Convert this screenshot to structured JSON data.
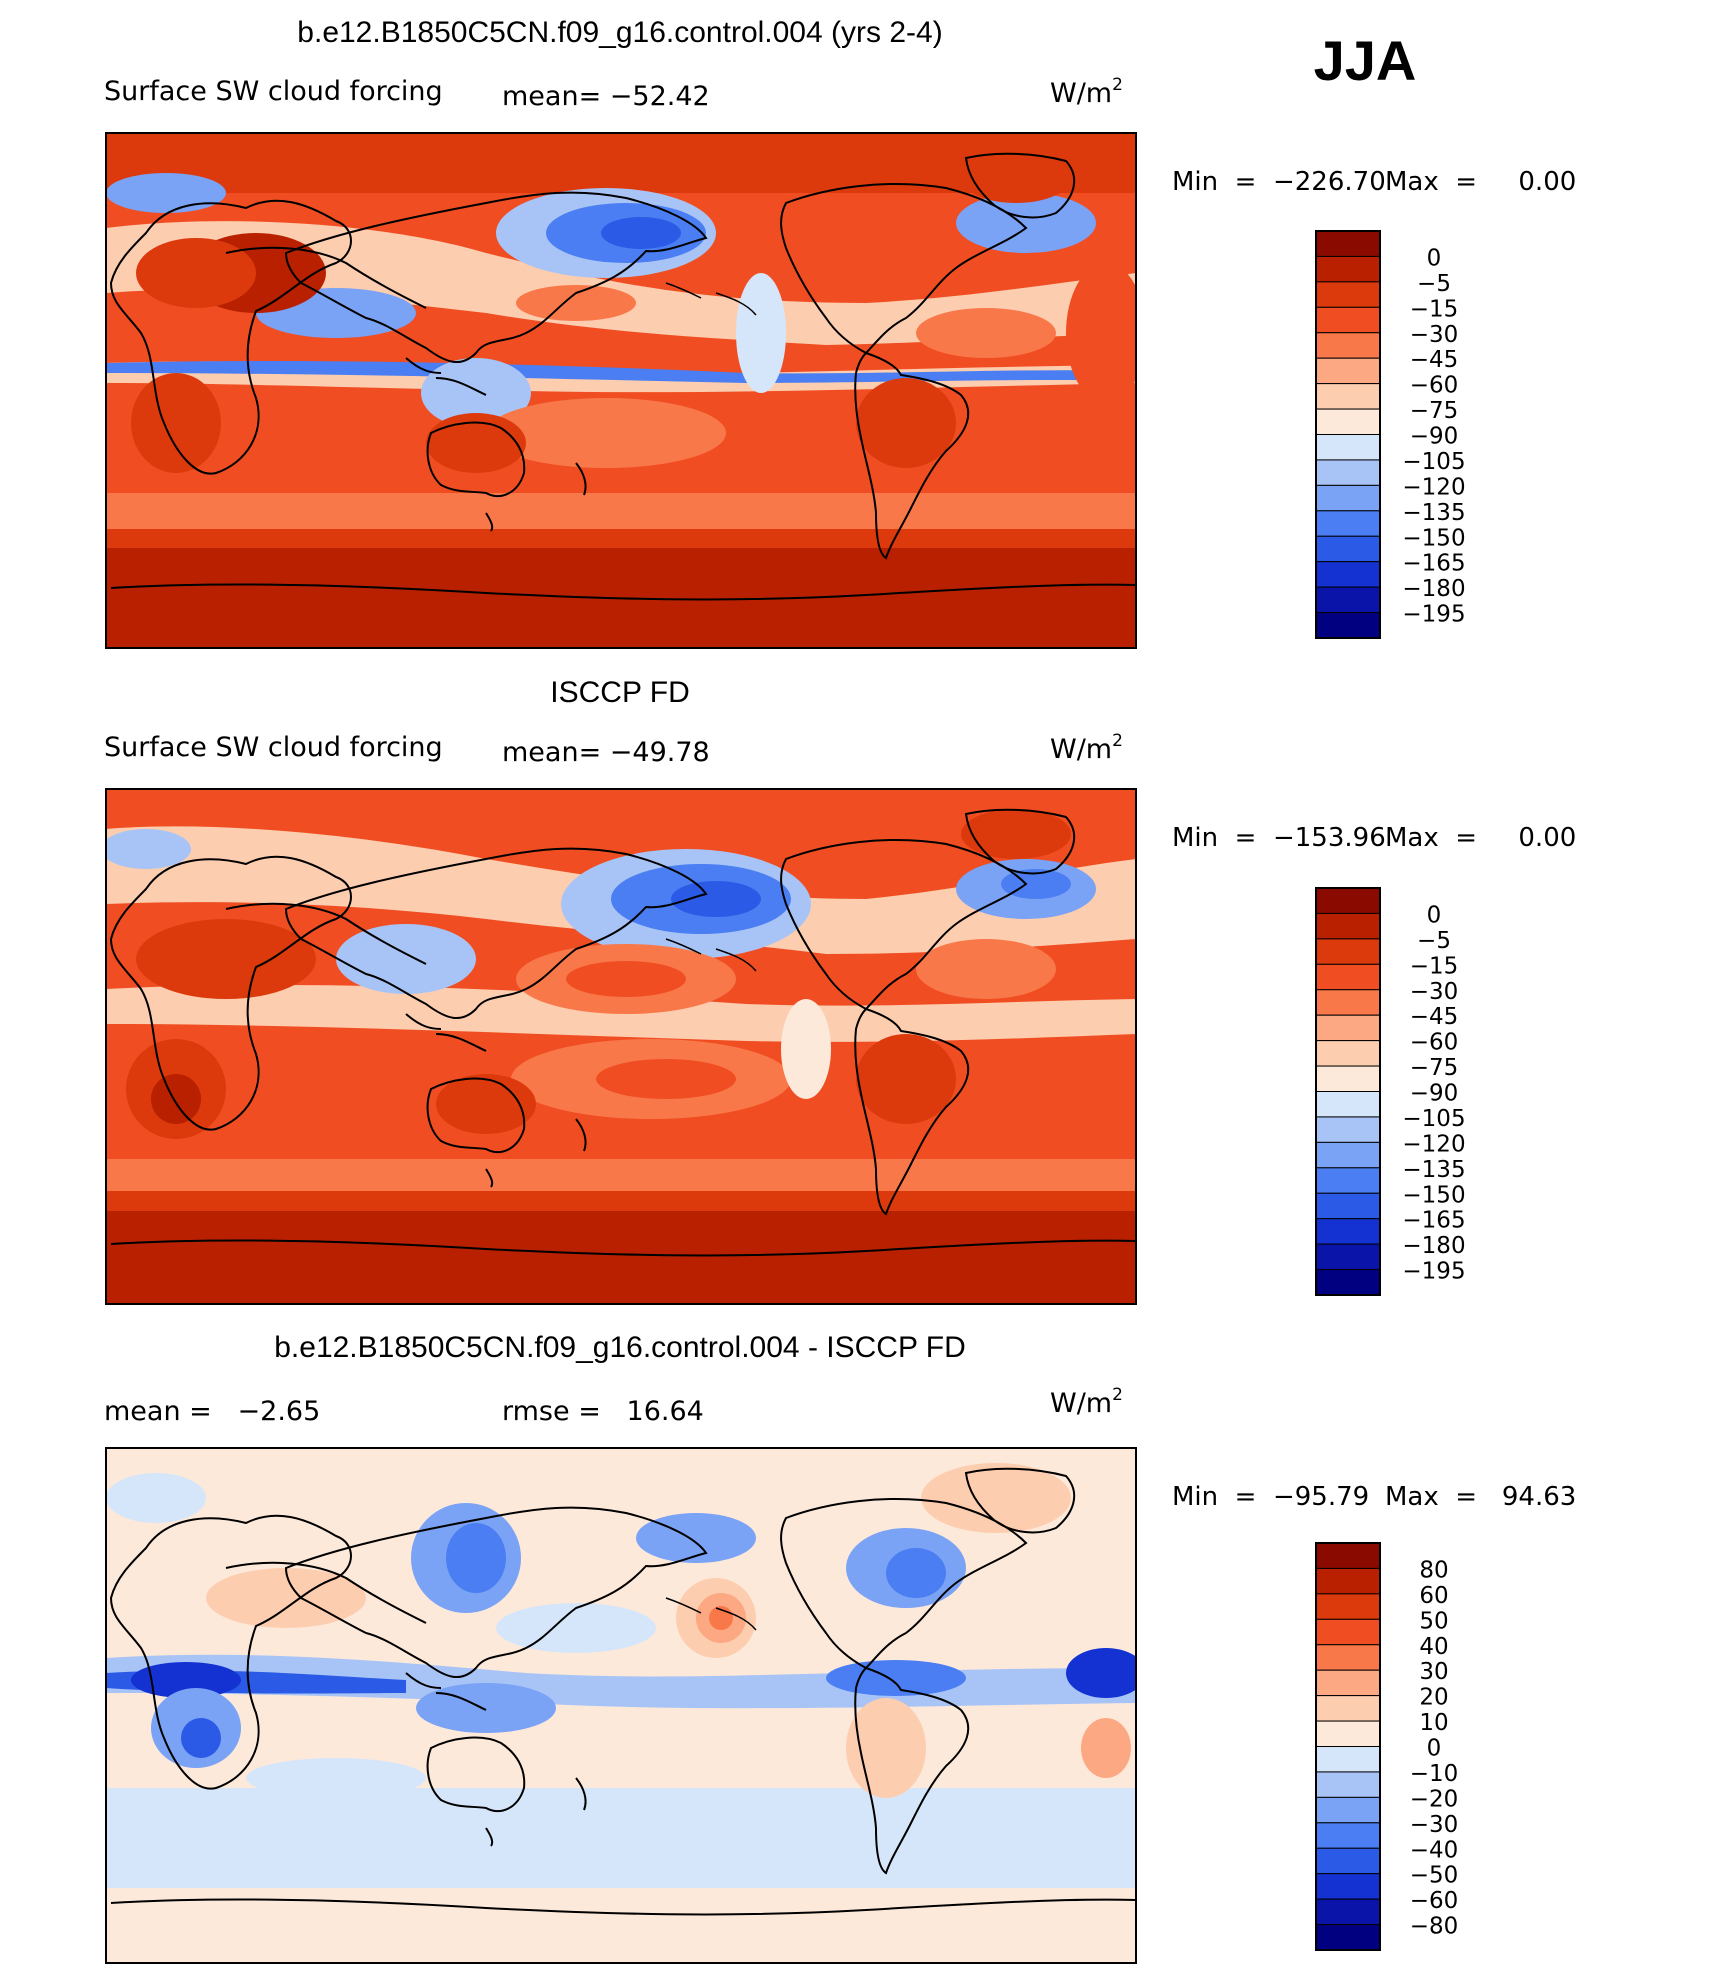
{
  "season": "JJA",
  "colors": {
    "abs_scale": [
      "#000080",
      "#0a14a8",
      "#1432d2",
      "#2a5ae6",
      "#4a7ef2",
      "#7aa2f5",
      "#a8c4f6",
      "#d6e6fa",
      "#fde9da",
      "#fdcdb0",
      "#fca882",
      "#f9784a",
      "#f04e22",
      "#dc3a0c",
      "#b82000",
      "#8a0a00"
    ],
    "diff_scale": [
      "#000080",
      "#0a14a8",
      "#1432d2",
      "#2a5ae6",
      "#4a7ef2",
      "#7aa2f5",
      "#a8c4f6",
      "#d6e6fa",
      "#fde9da",
      "#fdcdb0",
      "#fca882",
      "#f9784a",
      "#f04e22",
      "#dc3a0c",
      "#b82000",
      "#8a0a00"
    ],
    "coast": "#000000"
  },
  "chart_data": [
    {
      "type": "heatmap",
      "title": "b.e12.B1850C5CN.f09_g16.control.004 (yrs 2-4)",
      "left_label": "Surface SW cloud forcing",
      "mean_text": "mean= −52.42",
      "units": "W/m",
      "units_sup": "2",
      "min_text": "Min  =  −226.70",
      "max_text": "Max  =     0.00",
      "min": -226.7,
      "max": 0.0,
      "colorbar_labels": [
        "0",
        "−5",
        "−15",
        "−30",
        "−45",
        "−60",
        "−75",
        "−90",
        "−105",
        "−120",
        "−135",
        "−150",
        "−165",
        "−180",
        "−195"
      ],
      "field": "model"
    },
    {
      "type": "heatmap",
      "title": "ISCCP FD",
      "left_label": "Surface SW cloud forcing",
      "mean_text": "mean= −49.78",
      "units": "W/m",
      "units_sup": "2",
      "min_text": "Min  =  −153.96",
      "max_text": "Max  =     0.00",
      "min": -153.96,
      "max": 0.0,
      "colorbar_labels": [
        "0",
        "−5",
        "−15",
        "−30",
        "−45",
        "−60",
        "−75",
        "−90",
        "−105",
        "−120",
        "−135",
        "−150",
        "−165",
        "−180",
        "−195"
      ],
      "field": "obs"
    },
    {
      "type": "heatmap",
      "title": "b.e12.B1850C5CN.f09_g16.control.004 - ISCCP FD",
      "left_label": "mean =   −2.65",
      "mean_text": "rmse =   16.64",
      "mean": -2.65,
      "rmse": 16.64,
      "units": "W/m",
      "units_sup": "2",
      "min_text": "Min  =  −95.79",
      "max_text": "Max  =   94.63",
      "min": -95.79,
      "max": 94.63,
      "colorbar_labels": [
        "80",
        "60",
        "50",
        "40",
        "30",
        "20",
        "10",
        "0",
        "−10",
        "−20",
        "−30",
        "−40",
        "−50",
        "−60",
        "−80"
      ],
      "field": "diff"
    }
  ]
}
